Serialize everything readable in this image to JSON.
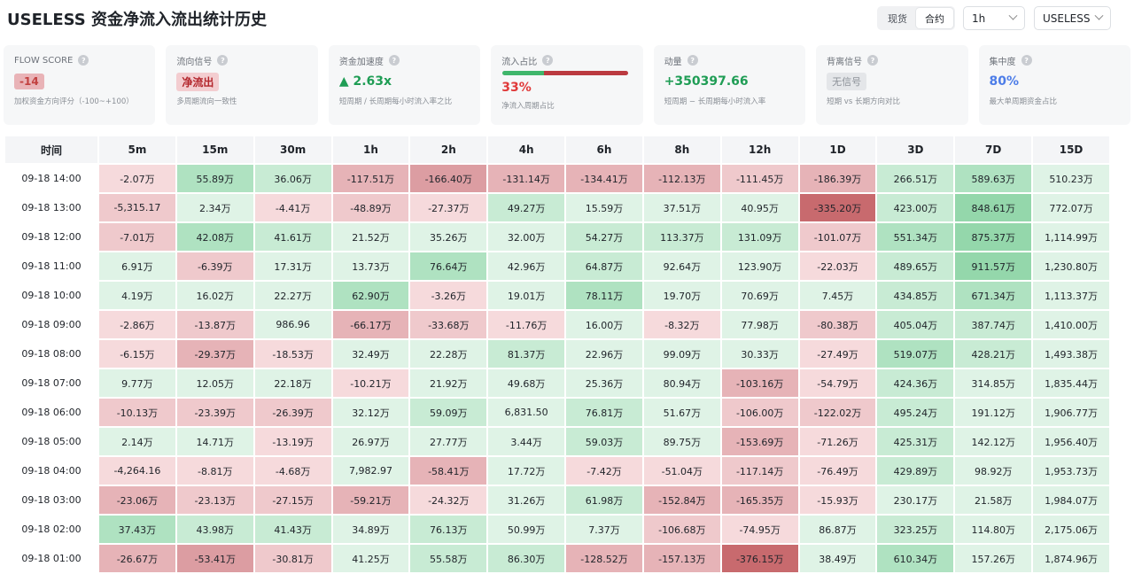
{
  "title": "USELESS 资金净流入流出统计历史",
  "market_tabs": [
    {
      "label": "现货",
      "active": false
    },
    {
      "label": "合约",
      "active": true
    }
  ],
  "interval_select": {
    "value": "1h"
  },
  "symbol_select": {
    "value": "USELESS"
  },
  "cards": [
    {
      "label": "FLOW SCORE",
      "value": "-14",
      "sub": "加权资金方向评分（-100~+100）",
      "style": "pill-red"
    },
    {
      "label": "流向信号",
      "value": "净流出",
      "sub": "多周期流向一致性",
      "style": "pill-redsoft"
    },
    {
      "label": "资金加速度",
      "value": "▲ 2.63x",
      "sub": "短周期 / 长周期每小时流入率之比",
      "style": "green"
    },
    {
      "label": "流入占比",
      "value": "33%",
      "sub": "净流入周期占比",
      "style": "red",
      "inflow_ratio": 0.33
    },
    {
      "label": "动量",
      "value": "+350397.66",
      "sub": "短周期 − 长周期每小时流入率",
      "style": "green"
    },
    {
      "label": "背离信号",
      "value": "无信号",
      "sub": "短期 vs 长期方向对比",
      "style": "pill-gray"
    },
    {
      "label": "集中度",
      "value": "80%",
      "sub": "最大单周期资金占比",
      "style": "blue"
    }
  ],
  "table": {
    "headers": [
      "时间",
      "5m",
      "15m",
      "30m",
      "1h",
      "2h",
      "4h",
      "6h",
      "8h",
      "12h",
      "1D",
      "3D",
      "7D",
      "15D"
    ],
    "rows": [
      {
        "time": "09-18 14:00",
        "cells": [
          "-2.07万",
          "55.89万",
          "36.06万",
          "-117.51万",
          "-166.40万",
          "-131.14万",
          "-134.41万",
          "-112.13万",
          "-111.45万",
          "-186.39万",
          "266.51万",
          "589.63万",
          "510.23万"
        ],
        "levels": [
          -1,
          3,
          2,
          -3,
          -4,
          -3,
          -3,
          -3,
          -2,
          -3,
          2,
          3,
          1
        ]
      },
      {
        "time": "09-18 13:00",
        "cells": [
          "-5,315.17",
          "2.34万",
          "-4.41万",
          "-48.89万",
          "-27.37万",
          "49.27万",
          "15.59万",
          "37.51万",
          "40.95万",
          "-335.20万",
          "423.00万",
          "848.61万",
          "772.07万"
        ],
        "levels": [
          -2,
          1,
          -1,
          -2,
          -1,
          2,
          1,
          1,
          1,
          -5,
          2,
          4,
          1
        ]
      },
      {
        "time": "09-18 12:00",
        "cells": [
          "-7.01万",
          "42.08万",
          "41.61万",
          "21.52万",
          "35.26万",
          "32.00万",
          "54.27万",
          "113.37万",
          "131.09万",
          "-101.07万",
          "551.34万",
          "875.37万",
          "1,114.99万"
        ],
        "levels": [
          -2,
          3,
          2,
          1,
          1,
          1,
          2,
          2,
          2,
          -2,
          3,
          4,
          1
        ]
      },
      {
        "time": "09-18 11:00",
        "cells": [
          "6.91万",
          "-6.39万",
          "17.31万",
          "13.73万",
          "76.64万",
          "42.96万",
          "64.87万",
          "92.64万",
          "123.90万",
          "-22.03万",
          "489.65万",
          "911.57万",
          "1,230.80万"
        ],
        "levels": [
          1,
          -2,
          1,
          1,
          3,
          1,
          2,
          1,
          1,
          -1,
          2,
          4,
          1
        ]
      },
      {
        "time": "09-18 10:00",
        "cells": [
          "4.19万",
          "16.02万",
          "22.27万",
          "62.90万",
          "-3.26万",
          "19.01万",
          "78.11万",
          "19.70万",
          "70.69万",
          "7.45万",
          "434.85万",
          "671.34万",
          "1,113.37万"
        ],
        "levels": [
          1,
          1,
          1,
          3,
          -1,
          1,
          3,
          1,
          1,
          1,
          2,
          3,
          1
        ]
      },
      {
        "time": "09-18 09:00",
        "cells": [
          "-2.86万",
          "-13.87万",
          "986.96",
          "-66.17万",
          "-33.68万",
          "-11.76万",
          "16.00万",
          "-8.32万",
          "77.98万",
          "-80.38万",
          "405.04万",
          "387.74万",
          "1,410.00万"
        ],
        "levels": [
          -1,
          -2,
          1,
          -3,
          -2,
          -1,
          1,
          -1,
          1,
          -2,
          2,
          2,
          1
        ]
      },
      {
        "time": "09-18 08:00",
        "cells": [
          "-6.15万",
          "-29.37万",
          "-18.53万",
          "32.49万",
          "22.28万",
          "81.37万",
          "22.96万",
          "99.09万",
          "30.33万",
          "-27.49万",
          "519.07万",
          "428.21万",
          "1,493.38万"
        ],
        "levels": [
          -1,
          -3,
          -1,
          1,
          1,
          2,
          1,
          1,
          1,
          -1,
          3,
          2,
          1
        ]
      },
      {
        "time": "09-18 07:00",
        "cells": [
          "9.77万",
          "12.05万",
          "22.18万",
          "-10.21万",
          "21.92万",
          "49.68万",
          "25.36万",
          "80.94万",
          "-103.16万",
          "-54.79万",
          "424.36万",
          "314.85万",
          "1,835.44万"
        ],
        "levels": [
          1,
          1,
          1,
          -1,
          1,
          1,
          1,
          1,
          -3,
          -1,
          2,
          1,
          1
        ]
      },
      {
        "time": "09-18 06:00",
        "cells": [
          "-10.13万",
          "-23.39万",
          "-26.39万",
          "32.12万",
          "59.09万",
          "6,831.50",
          "76.81万",
          "51.67万",
          "-106.00万",
          "-122.02万",
          "495.24万",
          "191.12万",
          "1,906.77万"
        ],
        "levels": [
          -2,
          -2,
          -2,
          1,
          2,
          1,
          2,
          1,
          -2,
          -2,
          2,
          1,
          1
        ]
      },
      {
        "time": "09-18 05:00",
        "cells": [
          "2.14万",
          "14.71万",
          "-13.19万",
          "26.97万",
          "27.77万",
          "3.44万",
          "59.03万",
          "89.75万",
          "-153.69万",
          "-71.26万",
          "425.31万",
          "142.12万",
          "1,956.40万"
        ],
        "levels": [
          1,
          1,
          -1,
          1,
          1,
          1,
          2,
          1,
          -3,
          -1,
          2,
          1,
          1
        ]
      },
      {
        "time": "09-18 04:00",
        "cells": [
          "-4,264.16",
          "-8.81万",
          "-4.68万",
          "7,982.97",
          "-58.41万",
          "17.72万",
          "-7.42万",
          "-51.04万",
          "-117.14万",
          "-76.49万",
          "429.89万",
          "98.92万",
          "1,953.73万"
        ],
        "levels": [
          -1,
          -1,
          -1,
          1,
          -3,
          1,
          -1,
          -1,
          -2,
          -1,
          2,
          1,
          1
        ]
      },
      {
        "time": "09-18 03:00",
        "cells": [
          "-23.06万",
          "-23.13万",
          "-27.15万",
          "-59.21万",
          "-24.32万",
          "31.26万",
          "61.98万",
          "-152.84万",
          "-165.35万",
          "-15.93万",
          "230.17万",
          "21.58万",
          "1,984.07万"
        ],
        "levels": [
          -3,
          -2,
          -2,
          -3,
          -1,
          1,
          2,
          -3,
          -3,
          -1,
          1,
          1,
          1
        ]
      },
      {
        "time": "09-18 02:00",
        "cells": [
          "37.43万",
          "43.98万",
          "41.43万",
          "34.89万",
          "76.13万",
          "50.99万",
          "7.37万",
          "-106.68万",
          "-74.95万",
          "86.87万",
          "323.25万",
          "114.80万",
          "2,175.06万"
        ],
        "levels": [
          3,
          2,
          2,
          1,
          2,
          1,
          1,
          -2,
          -1,
          1,
          2,
          1,
          1
        ]
      },
      {
        "time": "09-18 01:00",
        "cells": [
          "-26.67万",
          "-53.41万",
          "-30.81万",
          "41.25万",
          "55.58万",
          "86.30万",
          "-128.52万",
          "-157.13万",
          "-376.15万",
          "38.49万",
          "610.34万",
          "157.26万",
          "1,874.96万"
        ],
        "levels": [
          -3,
          -4,
          -2,
          1,
          2,
          2,
          -3,
          -3,
          -5,
          1,
          3,
          1,
          1
        ]
      }
    ]
  },
  "colors": {
    "neg": [
      "#f6dadc",
      "#efc9cc",
      "#e6b3b7",
      "#dc9da2",
      "#c86a6e"
    ],
    "pos": [
      "#dff3e6",
      "#c8ebd4",
      "#afe2c1",
      "#94d7ab"
    ]
  }
}
